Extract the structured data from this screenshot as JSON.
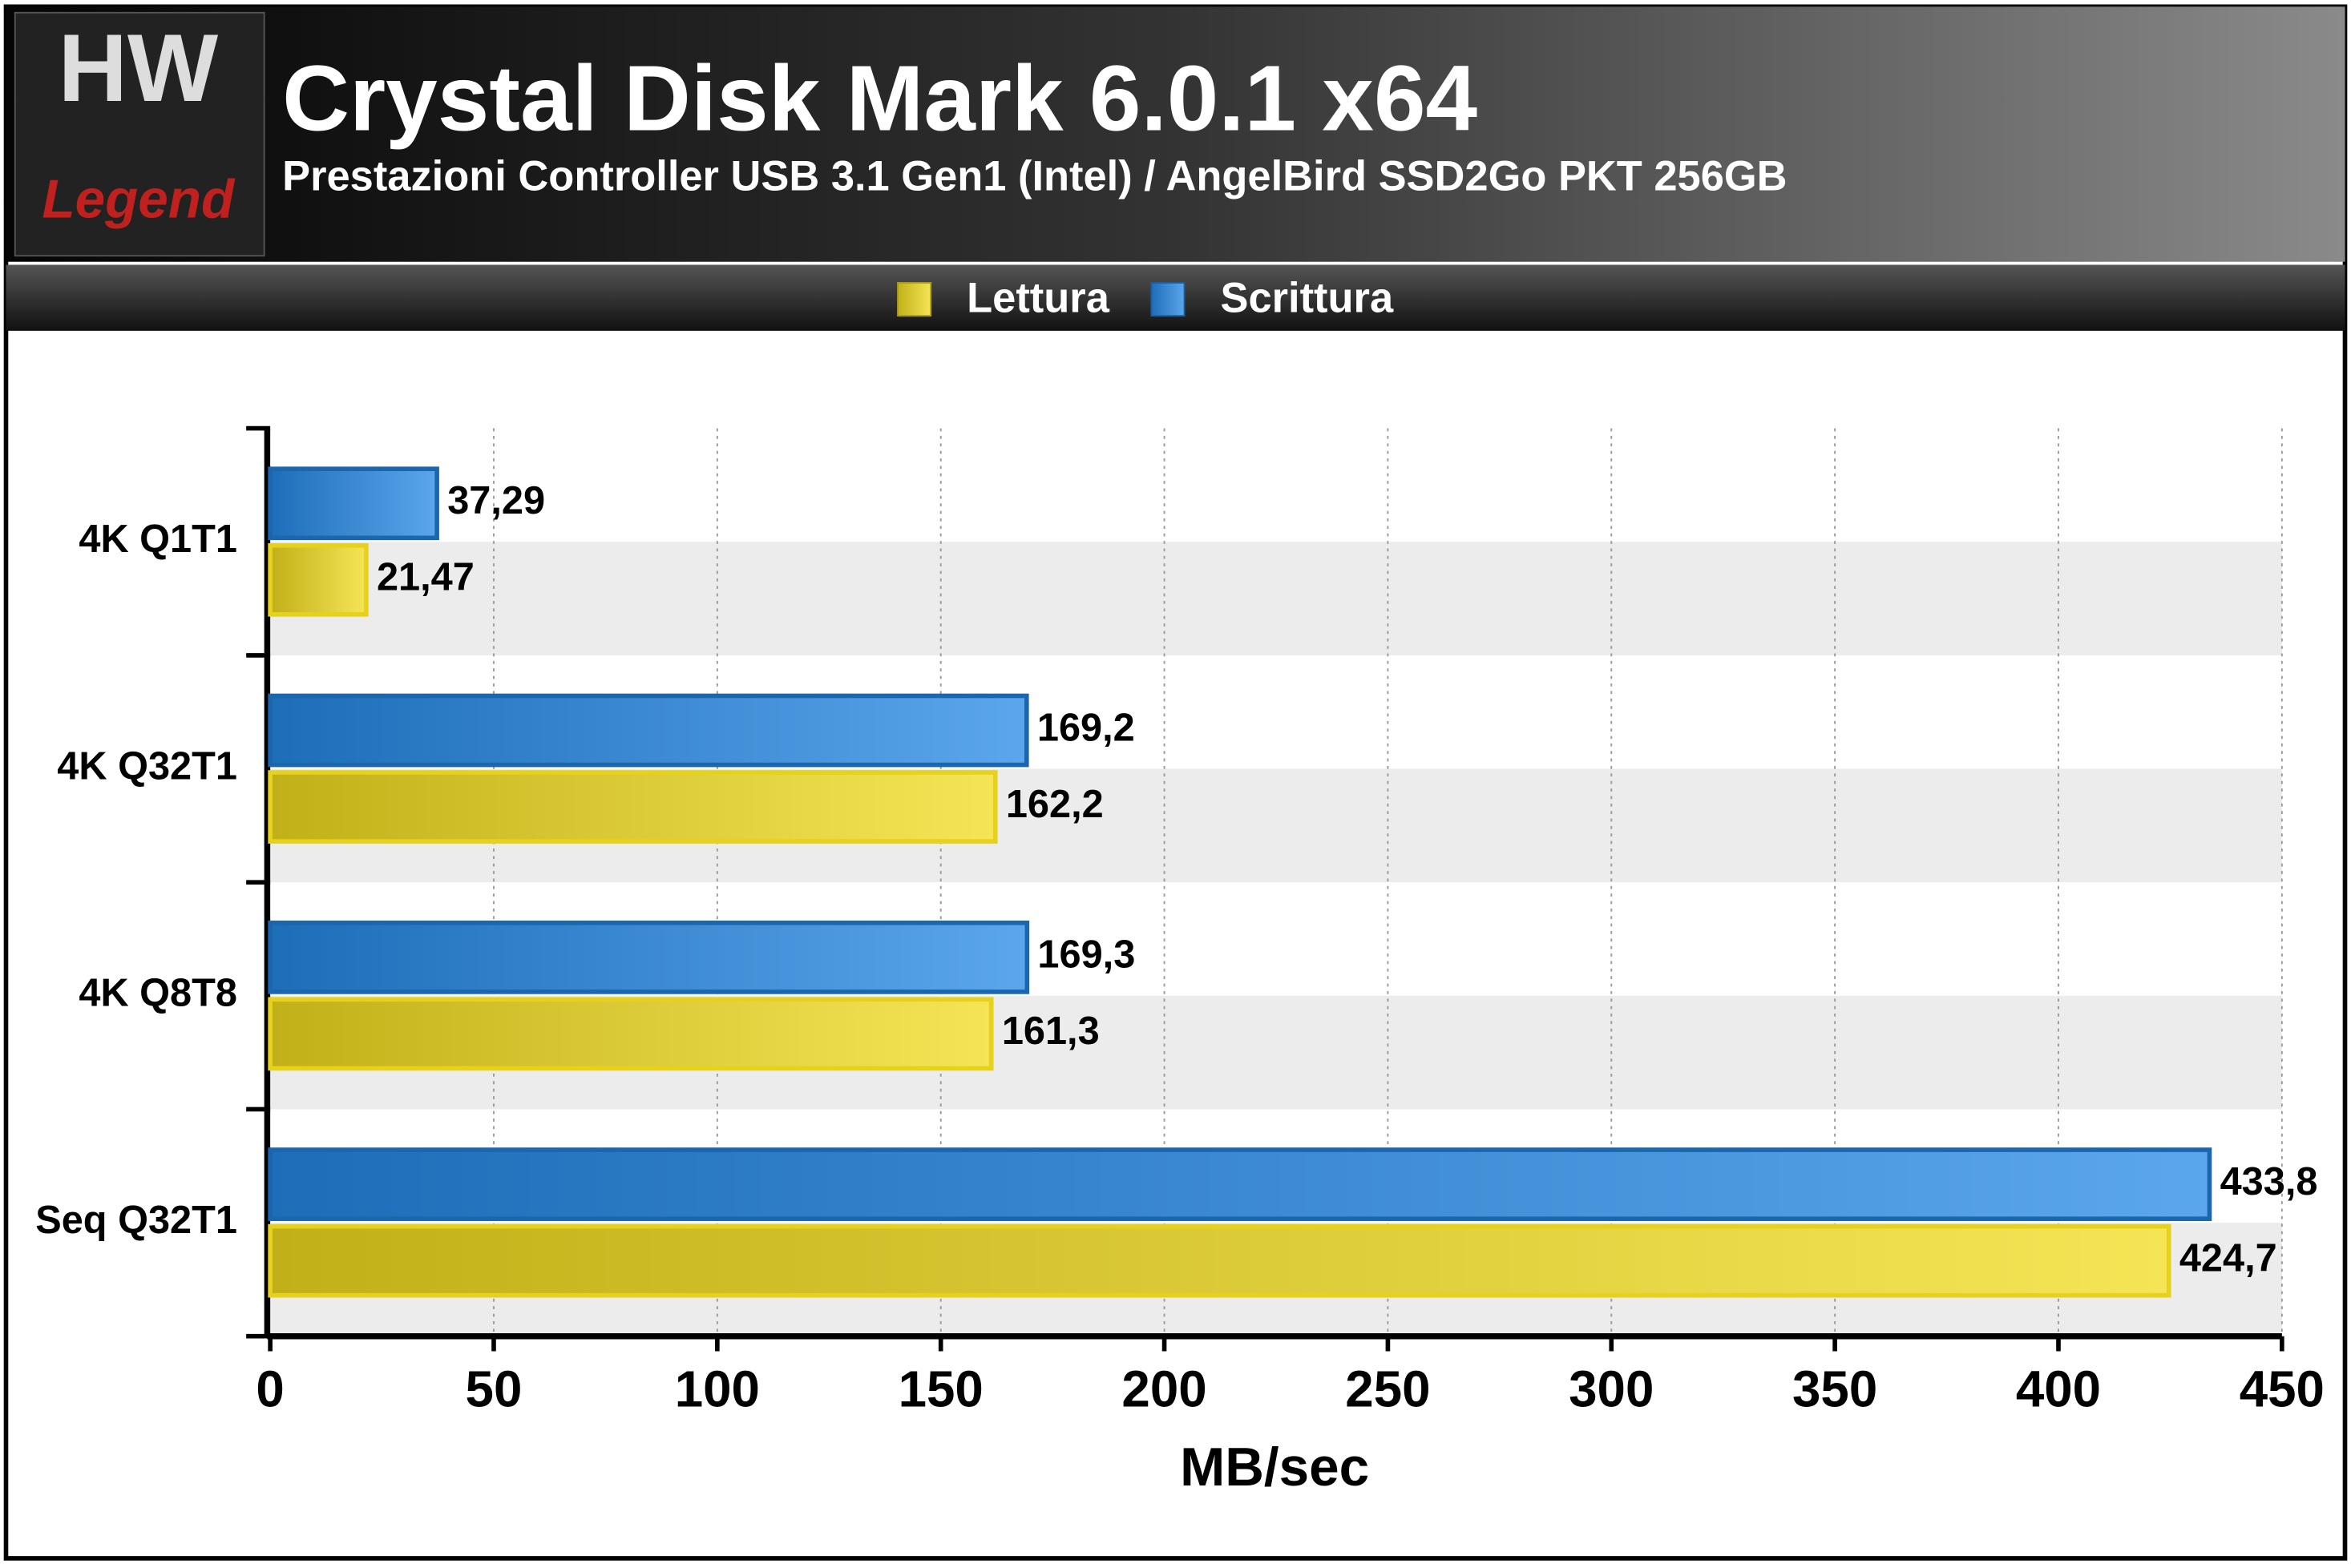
{
  "logo": {
    "top": "HW",
    "bottom": "Legend"
  },
  "chart_data": {
    "type": "hbar",
    "title": "Crystal Disk Mark 6.0.1 x64",
    "subtitle": "Prestazioni Controller USB 3.1 Gen1 (Intel) / AngelBird SSD2Go PKT 256GB",
    "categories": [
      "4K Q1T1",
      "4K Q32T1",
      "4K Q8T8",
      "Seq Q32T1"
    ],
    "series": [
      {
        "name": "Lettura",
        "color": "#f2dc1e",
        "values": [
          21.47,
          162.2,
          161.3,
          424.7
        ],
        "value_labels": [
          "21,47",
          "162,2",
          "161,3",
          "424,7"
        ]
      },
      {
        "name": "Scrittura",
        "color": "#2488e6",
        "values": [
          37.29,
          169.2,
          169.3,
          433.8
        ],
        "value_labels": [
          "37,29",
          "169,2",
          "169,3",
          "433,8"
        ]
      }
    ],
    "xlim": [
      0,
      450
    ],
    "xticks": [
      0,
      50,
      100,
      150,
      200,
      250,
      300,
      350,
      400,
      450
    ],
    "xlabel": "MB/sec",
    "grid": true
  }
}
